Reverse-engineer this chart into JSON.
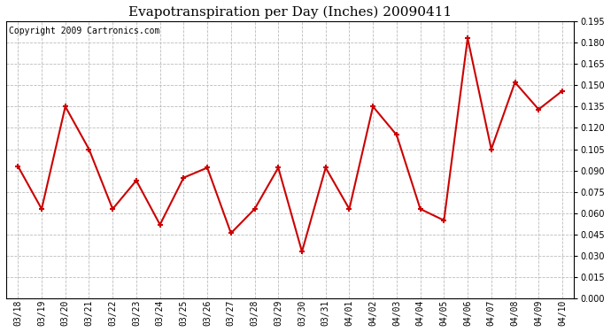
{
  "title": "Evapotranspiration per Day (Inches) 20090411",
  "copyright_text": "Copyright 2009 Cartronics.com",
  "x_labels": [
    "03/18",
    "03/19",
    "03/20",
    "03/21",
    "03/22",
    "03/23",
    "03/24",
    "03/25",
    "03/26",
    "03/27",
    "03/28",
    "03/29",
    "03/30",
    "03/31",
    "04/01",
    "04/02",
    "04/03",
    "04/04",
    "04/05",
    "04/06",
    "04/07",
    "04/08",
    "04/09",
    "04/10"
  ],
  "y_values": [
    0.093,
    0.063,
    0.135,
    0.105,
    0.063,
    0.083,
    0.052,
    0.085,
    0.092,
    0.046,
    0.063,
    0.092,
    0.033,
    0.092,
    0.063,
    0.135,
    0.115,
    0.063,
    0.055,
    0.183,
    0.105,
    0.152,
    0.133,
    0.146
  ],
  "line_color": "#cc0000",
  "marker": "+",
  "marker_size": 5,
  "marker_edge_width": 1.5,
  "line_width": 1.5,
  "ylim": [
    0.0,
    0.19
  ],
  "ytick_step": 0.015,
  "background_color": "#ffffff",
  "plot_bg_color": "#ffffff",
  "grid_color": "#bbbbbb",
  "title_fontsize": 11,
  "copyright_fontsize": 7,
  "tick_fontsize": 7,
  "border_color": "#000000"
}
